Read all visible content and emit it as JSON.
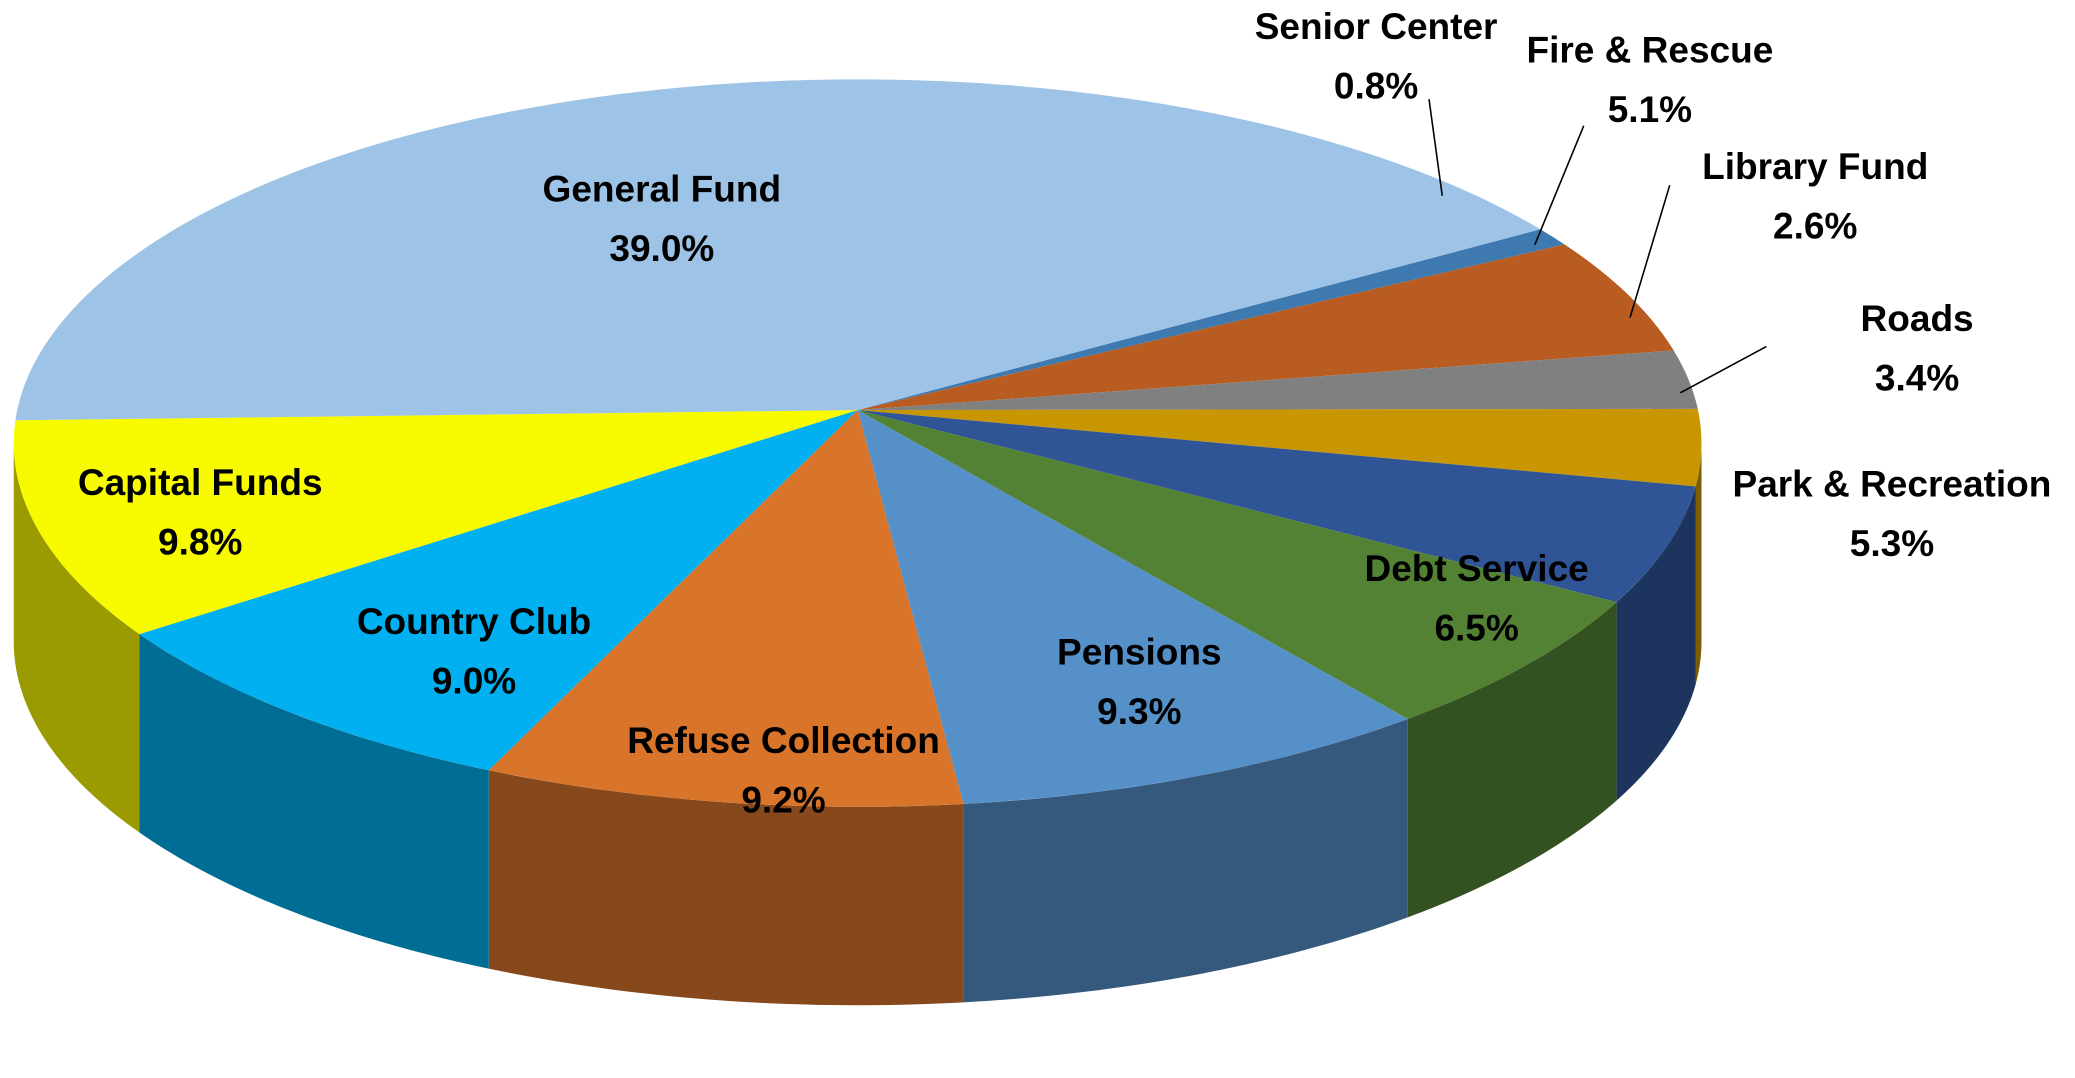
{
  "chart_data": {
    "type": "pie",
    "categories": [
      "Senior Center",
      "Fire & Rescue",
      "Library Fund",
      "Roads",
      "Park & Recreation",
      "Debt Service",
      "Pensions",
      "Refuse Collection",
      "Country Club",
      "Capital Funds",
      "General Fund"
    ],
    "values": [
      0.8,
      5.1,
      2.6,
      3.4,
      5.3,
      6.5,
      9.3,
      9.2,
      9.0,
      9.8,
      39.0
    ],
    "value_labels": [
      "0.8%",
      "5.1%",
      "2.6%",
      "3.4%",
      "5.3%",
      "6.5%",
      "9.3%",
      "9.2%",
      "9.0%",
      "9.8%",
      "39.0%"
    ],
    "colors": [
      "#3e79b0",
      "#b85c22",
      "#808080",
      "#c89600",
      "#2f5597",
      "#548235",
      "#5590c8",
      "#d9742b",
      "#00b0f0",
      "#f8fa00",
      "#9dc3e6"
    ]
  }
}
